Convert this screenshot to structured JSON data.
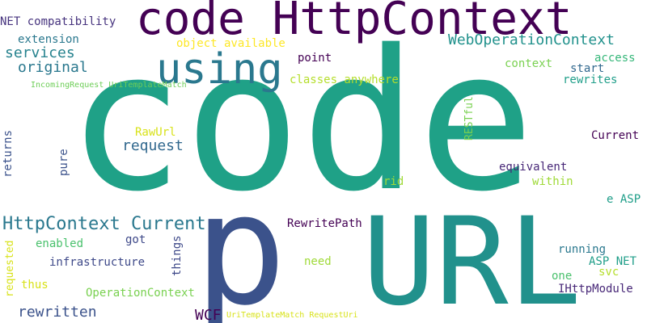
{
  "words": [
    {
      "text": "code",
      "color": "#1fa187"
    },
    {
      "text": "URL",
      "color": "#21918c"
    },
    {
      "text": "p",
      "color": "#3b528b"
    },
    {
      "text": "code HttpContext",
      "color": "#440154"
    },
    {
      "text": "using",
      "color": "#2a788e"
    },
    {
      "text": "HttpContext Current",
      "color": "#2a788e"
    },
    {
      "text": "WebOperationContext",
      "color": "#21918c"
    },
    {
      "text": "services",
      "color": "#26828e"
    },
    {
      "text": "original",
      "color": "#2a788e"
    },
    {
      "text": "request",
      "color": "#31688e"
    },
    {
      "text": "rewritten",
      "color": "#3b528b"
    },
    {
      "text": "WCF",
      "color": "#440154"
    },
    {
      "text": "NET compatibility",
      "color": "#46337e"
    },
    {
      "text": "extension",
      "color": "#2a788e"
    },
    {
      "text": "IncomingRequest UriTemplateMatch",
      "color": "#6ece58"
    },
    {
      "text": "object available",
      "color": "#fde725"
    },
    {
      "text": "point",
      "color": "#440154"
    },
    {
      "text": "classes anywhere",
      "color": "#b5de2b"
    },
    {
      "text": "context",
      "color": "#7ad151"
    },
    {
      "text": "access",
      "color": "#35b779"
    },
    {
      "text": "start",
      "color": "#31688e"
    },
    {
      "text": "rewrites",
      "color": "#1f9e89"
    },
    {
      "text": "RESTful",
      "color": "#7ad151"
    },
    {
      "text": "RawUrl",
      "color": "#d8e219"
    },
    {
      "text": "returns",
      "color": "#3b528b"
    },
    {
      "text": "pure",
      "color": "#3b528b"
    },
    {
      "text": "Current",
      "color": "#440154"
    },
    {
      "text": "equivalent",
      "color": "#482878"
    },
    {
      "text": "rid",
      "color": "#a0da39"
    },
    {
      "text": "within",
      "color": "#a0da39"
    },
    {
      "text": "e ASP",
      "color": "#1f9e89"
    },
    {
      "text": "RewritePath",
      "color": "#440154"
    },
    {
      "text": "requested",
      "color": "#d8e219"
    },
    {
      "text": "enabled",
      "color": "#4ac16d"
    },
    {
      "text": "got",
      "color": "#3e4989"
    },
    {
      "text": "things",
      "color": "#3e4989"
    },
    {
      "text": "infrastructure",
      "color": "#3e4989"
    },
    {
      "text": "need",
      "color": "#a0da39"
    },
    {
      "text": "running",
      "color": "#2a788e"
    },
    {
      "text": "ASP NET",
      "color": "#1f9e89"
    },
    {
      "text": "svc",
      "color": "#b5de2b"
    },
    {
      "text": "one",
      "color": "#4ac16d"
    },
    {
      "text": "IHttpModule",
      "color": "#482878"
    },
    {
      "text": "thus",
      "color": "#d8e219"
    },
    {
      "text": "OperationContext",
      "color": "#7ad151"
    },
    {
      "text": "UriTemplateMatch RequestUri",
      "color": "#d8e219"
    }
  ]
}
